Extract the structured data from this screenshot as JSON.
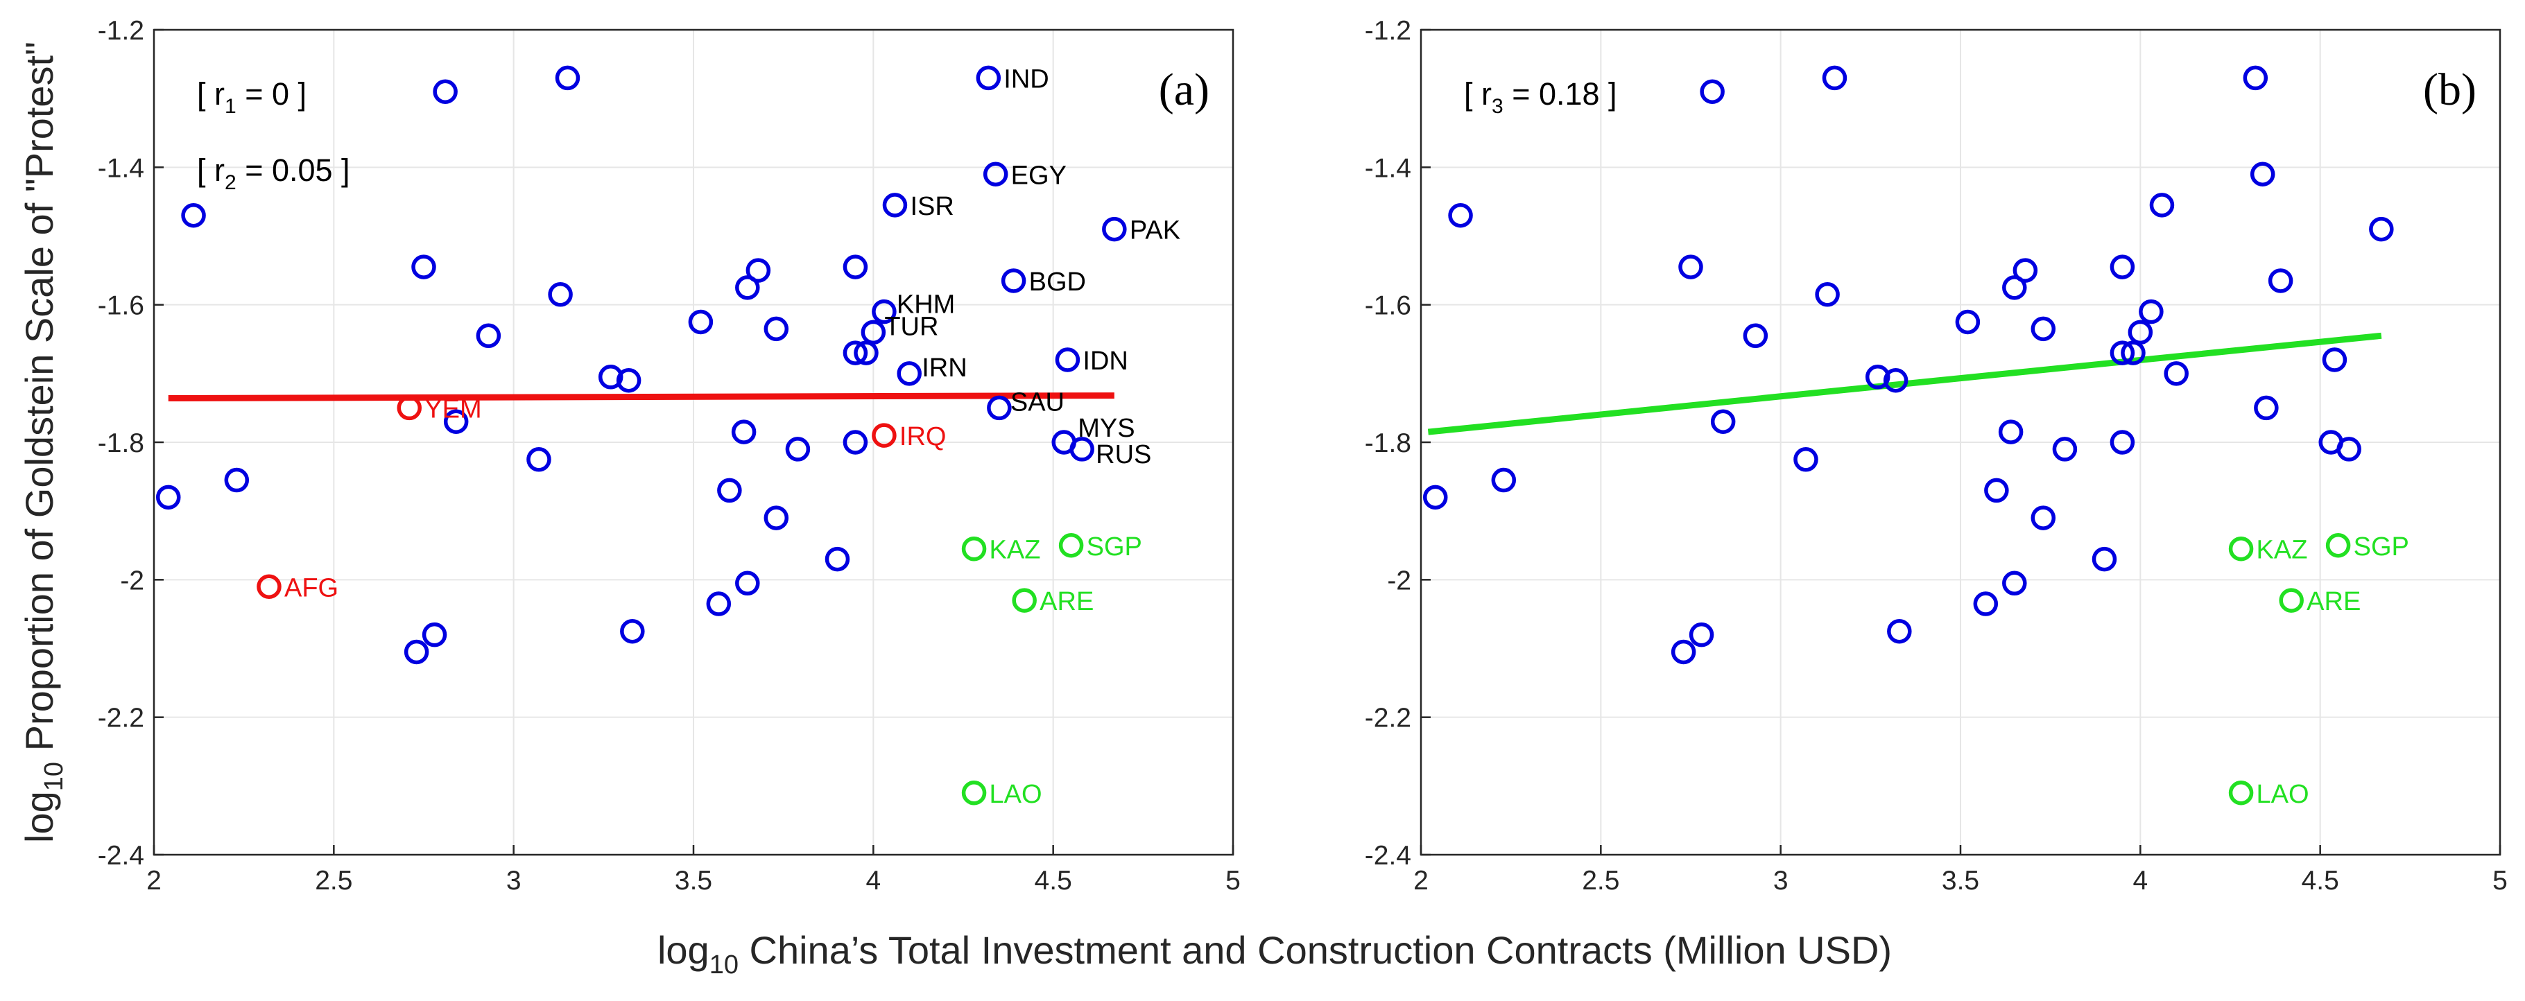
{
  "colors": {
    "default": "#0000e0",
    "outlier_red": "#ee1111",
    "outlier_green": "#22e022",
    "fit_a": "#ee1111",
    "fit_b": "#22e022",
    "label_default": "#000000"
  },
  "figure": {
    "shared_xlabel": {
      "prefix": "log",
      "sub": "10",
      "text": " China’s Total Investment and Construction Contracts (Million USD)"
    },
    "shared_ylabel": {
      "prefix": "log",
      "sub": "10",
      "text": " Proportion of Goldstein Scale of \"Protest\""
    }
  },
  "chart_data": [
    {
      "type": "scatter",
      "panel": "(a)",
      "xlim": [
        2,
        5
      ],
      "ylim": [
        -2.4,
        -1.2
      ],
      "xticks": [
        2,
        2.5,
        3,
        3.5,
        4,
        4.5,
        5
      ],
      "xtick_labels": [
        "2",
        "2.5",
        "3",
        "3.5",
        "4",
        "4.5",
        "5"
      ],
      "yticks": [
        -1.2,
        -1.4,
        -1.6,
        -1.8,
        -2,
        -2.2,
        -2.4
      ],
      "ytick_labels": [
        "-1.2",
        "-1.4",
        "-1.6",
        "-1.8",
        "-2",
        "-2.2",
        "-2.4"
      ],
      "grid": true,
      "stats": [
        {
          "pre": "[ r",
          "sub": "1",
          "post": " = 0 ]"
        },
        {
          "pre": "[ r",
          "sub": "2",
          "post": " =  0.05 ]"
        }
      ],
      "fit_line": {
        "x": [
          2.04,
          4.67
        ],
        "y": [
          -1.736,
          -1.732
        ],
        "color": "fit_a"
      },
      "points": [
        {
          "x": 2.04,
          "y": -1.88
        },
        {
          "x": 2.11,
          "y": -1.47
        },
        {
          "x": 2.23,
          "y": -1.855
        },
        {
          "x": 2.32,
          "y": -2.01,
          "label": "AFG",
          "group": "red"
        },
        {
          "x": 2.71,
          "y": -1.75,
          "label": "YEM",
          "group": "red"
        },
        {
          "x": 2.73,
          "y": -2.105
        },
        {
          "x": 2.75,
          "y": -1.545
        },
        {
          "x": 2.78,
          "y": -2.08
        },
        {
          "x": 2.81,
          "y": -1.29
        },
        {
          "x": 2.84,
          "y": -1.77
        },
        {
          "x": 2.93,
          "y": -1.645
        },
        {
          "x": 3.07,
          "y": -1.825
        },
        {
          "x": 3.13,
          "y": -1.585
        },
        {
          "x": 3.15,
          "y": -1.27
        },
        {
          "x": 3.27,
          "y": -1.705
        },
        {
          "x": 3.32,
          "y": -1.71
        },
        {
          "x": 3.33,
          "y": -2.075
        },
        {
          "x": 3.52,
          "y": -1.625
        },
        {
          "x": 3.57,
          "y": -2.035
        },
        {
          "x": 3.6,
          "y": -1.87
        },
        {
          "x": 3.64,
          "y": -1.785
        },
        {
          "x": 3.65,
          "y": -1.575
        },
        {
          "x": 3.65,
          "y": -2.005
        },
        {
          "x": 3.68,
          "y": -1.55
        },
        {
          "x": 3.73,
          "y": -1.635
        },
        {
          "x": 3.73,
          "y": -1.91
        },
        {
          "x": 3.79,
          "y": -1.81
        },
        {
          "x": 3.9,
          "y": -1.97
        },
        {
          "x": 3.95,
          "y": -1.545
        },
        {
          "x": 3.95,
          "y": -1.67
        },
        {
          "x": 3.95,
          "y": -1.8
        },
        {
          "x": 3.98,
          "y": -1.67
        },
        {
          "x": 4.0,
          "y": -1.64,
          "label": "TUR"
        },
        {
          "x": 4.03,
          "y": -1.61,
          "label": "KHM"
        },
        {
          "x": 4.03,
          "y": -1.79,
          "label": "IRQ",
          "group": "red"
        },
        {
          "x": 4.06,
          "y": -1.455,
          "label": "ISR"
        },
        {
          "x": 4.1,
          "y": -1.7,
          "label": "IRN"
        },
        {
          "x": 4.28,
          "y": -1.955,
          "label": "KAZ",
          "group": "green"
        },
        {
          "x": 4.28,
          "y": -2.31,
          "label": "LAO",
          "group": "green"
        },
        {
          "x": 4.32,
          "y": -1.27,
          "label": "IND"
        },
        {
          "x": 4.34,
          "y": -1.41,
          "label": "EGY"
        },
        {
          "x": 4.35,
          "y": -1.75,
          "label": "SAU"
        },
        {
          "x": 4.39,
          "y": -1.565,
          "label": "BGD"
        },
        {
          "x": 4.42,
          "y": -2.03,
          "label": "ARE",
          "group": "green"
        },
        {
          "x": 4.53,
          "y": -1.8,
          "label": "MYS"
        },
        {
          "x": 4.54,
          "y": -1.68,
          "label": "IDN"
        },
        {
          "x": 4.55,
          "y": -1.95,
          "label": "SGP",
          "group": "green"
        },
        {
          "x": 4.58,
          "y": -1.81,
          "label": "RUS"
        },
        {
          "x": 4.67,
          "y": -1.49,
          "label": "PAK"
        }
      ]
    },
    {
      "type": "scatter",
      "panel": "(b)",
      "xlim": [
        2,
        5
      ],
      "ylim": [
        -2.4,
        -1.2
      ],
      "xticks": [
        2,
        2.5,
        3,
        3.5,
        4,
        4.5,
        5
      ],
      "xtick_labels": [
        "2",
        "2.5",
        "3",
        "3.5",
        "4",
        "4.5",
        "5"
      ],
      "yticks": [
        -1.2,
        -1.4,
        -1.6,
        -1.8,
        -2,
        -2.2,
        -2.4
      ],
      "ytick_labels": [
        "-1.2",
        "-1.4",
        "-1.6",
        "-1.8",
        "-2",
        "-2.2",
        "-2.4"
      ],
      "grid": true,
      "stats": [
        {
          "pre": "[ r",
          "sub": "3",
          "post": " = 0.18 ]"
        }
      ],
      "fit_line": {
        "x": [
          2.02,
          4.67
        ],
        "y": [
          -1.785,
          -1.645
        ],
        "color": "fit_b"
      },
      "points": [
        {
          "x": 2.04,
          "y": -1.88
        },
        {
          "x": 2.11,
          "y": -1.47
        },
        {
          "x": 2.23,
          "y": -1.855
        },
        {
          "x": 2.73,
          "y": -2.105
        },
        {
          "x": 2.75,
          "y": -1.545
        },
        {
          "x": 2.78,
          "y": -2.08
        },
        {
          "x": 2.81,
          "y": -1.29
        },
        {
          "x": 2.84,
          "y": -1.77
        },
        {
          "x": 2.93,
          "y": -1.645
        },
        {
          "x": 3.07,
          "y": -1.825
        },
        {
          "x": 3.13,
          "y": -1.585
        },
        {
          "x": 3.15,
          "y": -1.27
        },
        {
          "x": 3.27,
          "y": -1.705
        },
        {
          "x": 3.32,
          "y": -1.71
        },
        {
          "x": 3.33,
          "y": -2.075
        },
        {
          "x": 3.52,
          "y": -1.625
        },
        {
          "x": 3.57,
          "y": -2.035
        },
        {
          "x": 3.6,
          "y": -1.87
        },
        {
          "x": 3.64,
          "y": -1.785
        },
        {
          "x": 3.65,
          "y": -1.575
        },
        {
          "x": 3.65,
          "y": -2.005
        },
        {
          "x": 3.68,
          "y": -1.55
        },
        {
          "x": 3.73,
          "y": -1.635
        },
        {
          "x": 3.73,
          "y": -1.91
        },
        {
          "x": 3.79,
          "y": -1.81
        },
        {
          "x": 3.9,
          "y": -1.97
        },
        {
          "x": 3.95,
          "y": -1.545
        },
        {
          "x": 3.95,
          "y": -1.67
        },
        {
          "x": 3.95,
          "y": -1.8
        },
        {
          "x": 3.98,
          "y": -1.67
        },
        {
          "x": 4.0,
          "y": -1.64
        },
        {
          "x": 4.03,
          "y": -1.61
        },
        {
          "x": 4.06,
          "y": -1.455
        },
        {
          "x": 4.1,
          "y": -1.7
        },
        {
          "x": 4.28,
          "y": -1.955,
          "label": "KAZ",
          "group": "green"
        },
        {
          "x": 4.28,
          "y": -2.31,
          "label": "LAO",
          "group": "green"
        },
        {
          "x": 4.32,
          "y": -1.27
        },
        {
          "x": 4.34,
          "y": -1.41
        },
        {
          "x": 4.35,
          "y": -1.75
        },
        {
          "x": 4.39,
          "y": -1.565
        },
        {
          "x": 4.42,
          "y": -2.03,
          "label": "ARE",
          "group": "green"
        },
        {
          "x": 4.53,
          "y": -1.8
        },
        {
          "x": 4.54,
          "y": -1.68
        },
        {
          "x": 4.55,
          "y": -1.95,
          "label": "SGP",
          "group": "green"
        },
        {
          "x": 4.58,
          "y": -1.81
        },
        {
          "x": 4.67,
          "y": -1.49
        }
      ]
    }
  ]
}
